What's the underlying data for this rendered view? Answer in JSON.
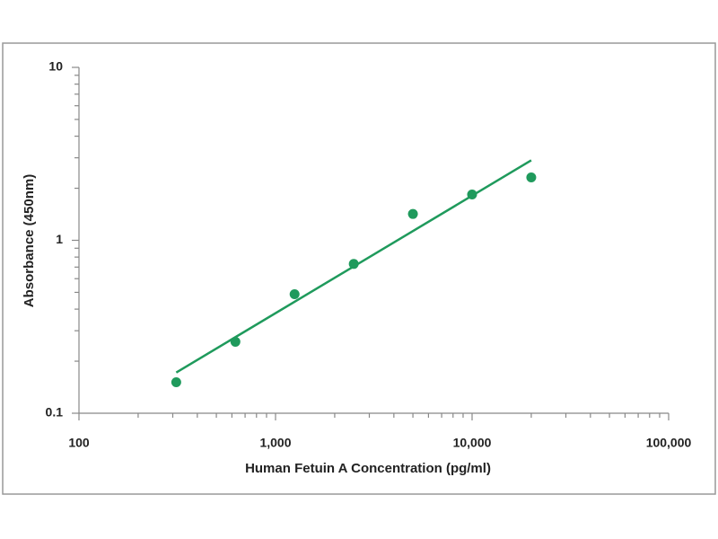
{
  "chart_data": {
    "type": "scatter",
    "x_label": "Human Fetuin A Concentration (pg/ml)",
    "y_label": "Absorbance (450nm)",
    "log_x": true,
    "log_y": true,
    "xlim": [
      100,
      100000
    ],
    "xticks": [
      100,
      {
        "value": 1000,
        "label": "1,000"
      },
      {
        "value": 10000,
        "label": "10,000"
      },
      {
        "value": 100000,
        "label": "100,000"
      }
    ],
    "ylim": [
      0.1,
      10
    ],
    "yticks": [
      0.1,
      1,
      10
    ],
    "points": {
      "color": "#1f9a5c",
      "x": [
        312.5,
        625,
        1250,
        2500,
        5000,
        10000,
        20000
      ],
      "y": [
        0.151,
        0.259,
        0.488,
        0.73,
        1.42,
        1.84,
        2.31
      ]
    },
    "fit": {
      "color": "#1f9a5c",
      "x": [
        312.5,
        20000
      ],
      "y": [
        0.172,
        2.9
      ]
    }
  }
}
